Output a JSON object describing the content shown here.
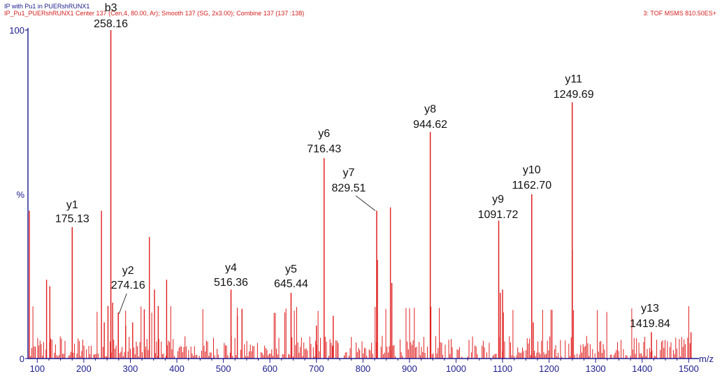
{
  "header": {
    "line1": "IP with Pu1 in PUERshRUNX1",
    "line2": "IP_Pu1_PUERshRUNX1 Center 137 (Cen,4, 80.00, Ar);  Smooth 137 (SG, 2x3.00); Combine 137 (137 :138)",
    "scan_label": "3: TOF MSMS 810.50ES+"
  },
  "colors": {
    "axis": "#1a1a8c",
    "peaks": "#e02020",
    "labels": "#111111"
  },
  "chart_data": {
    "type": "bar",
    "xlabel": "m/z",
    "ylabel": "%",
    "xlim": [
      80,
      1510
    ],
    "ylim": [
      0,
      100
    ],
    "x_ticks": [
      100,
      200,
      300,
      400,
      500,
      600,
      700,
      800,
      900,
      1000,
      1100,
      1200,
      1300,
      1400,
      1500
    ],
    "y_tick_labels": {
      "top": "100",
      "mid": "%",
      "bottom": "0"
    },
    "annotated_peaks": [
      {
        "name": "b3",
        "mz": "258.16",
        "x": 258.16,
        "y": 100
      },
      {
        "name": "y1",
        "mz": "175.13",
        "x": 175.13,
        "y": 40
      },
      {
        "name": "y2",
        "mz": "274.16",
        "x": 274.16,
        "y": 14
      },
      {
        "name": "y4",
        "mz": "516.36",
        "x": 516.36,
        "y": 21
      },
      {
        "name": "y5",
        "mz": "645.44",
        "x": 645.44,
        "y": 20
      },
      {
        "name": "y6",
        "mz": "716.43",
        "x": 716.43,
        "y": 61
      },
      {
        "name": "y7",
        "mz": "829.51",
        "x": 829.51,
        "y": 45
      },
      {
        "name": "y8",
        "mz": "944.62",
        "x": 944.62,
        "y": 69
      },
      {
        "name": "y9",
        "mz": "1091.72",
        "x": 1091.72,
        "y": 42
      },
      {
        "name": "y10",
        "mz": "1162.70",
        "x": 1162.7,
        "y": 50
      },
      {
        "name": "y11",
        "mz": "1249.69",
        "x": 1249.69,
        "y": 78
      },
      {
        "name": "y13",
        "mz": "1419.84",
        "x": 1419.84,
        "y": 8
      }
    ],
    "major_peaks": [
      {
        "x": 83,
        "y": 45
      },
      {
        "x": 120,
        "y": 24
      },
      {
        "x": 127,
        "y": 22
      },
      {
        "x": 238,
        "y": 45
      },
      {
        "x": 244,
        "y": 11
      },
      {
        "x": 252,
        "y": 16
      },
      {
        "x": 262,
        "y": 17
      },
      {
        "x": 290,
        "y": 10
      },
      {
        "x": 305,
        "y": 11
      },
      {
        "x": 330,
        "y": 15
      },
      {
        "x": 341,
        "y": 37
      },
      {
        "x": 352,
        "y": 21
      },
      {
        "x": 360,
        "y": 16
      },
      {
        "x": 378,
        "y": 24
      },
      {
        "x": 530,
        "y": 13
      },
      {
        "x": 540,
        "y": 15
      },
      {
        "x": 700,
        "y": 10
      },
      {
        "x": 736,
        "y": 13
      },
      {
        "x": 831,
        "y": 30
      },
      {
        "x": 859,
        "y": 46
      },
      {
        "x": 862,
        "y": 23
      },
      {
        "x": 1095,
        "y": 20
      },
      {
        "x": 1100,
        "y": 21
      },
      {
        "x": 1166,
        "y": 11
      },
      {
        "x": 1250,
        "y": 33
      },
      {
        "x": 1505,
        "y": 8
      }
    ]
  }
}
